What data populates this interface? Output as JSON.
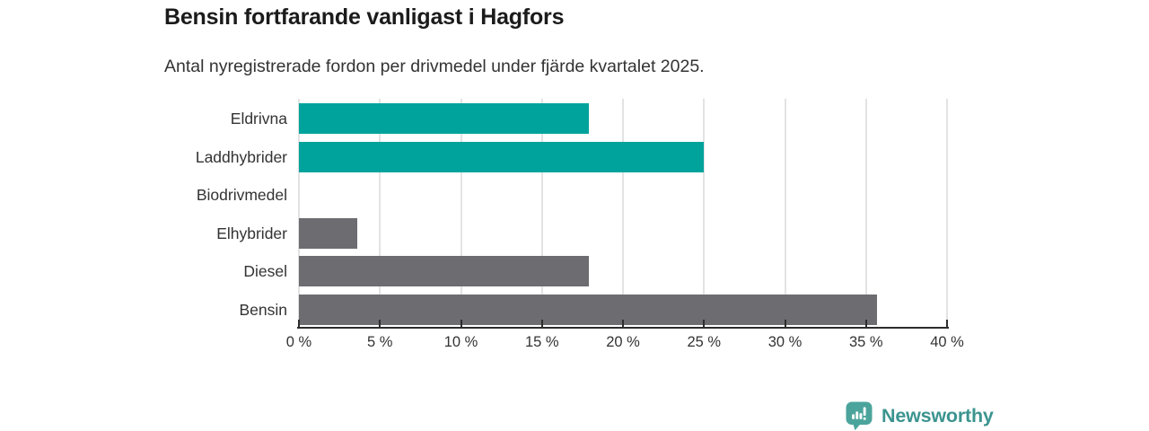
{
  "header": {
    "title": "Bensin fortfarande vanligast i Hagfors",
    "subtitle": "Antal nyregistrerade fordon per drivmedel under fjärde kvartalet 2025."
  },
  "chart_data": {
    "type": "bar",
    "orientation": "horizontal",
    "title": "Bensin fortfarande vanligast i Hagfors",
    "subtitle": "Antal nyregistrerade fordon per drivmedel under fjärde kvartalet 2025.",
    "categories": [
      "Eldrivna",
      "Laddhybrider",
      "Biodrivmedel",
      "Elhybrider",
      "Diesel",
      "Bensin"
    ],
    "values": [
      17.9,
      25.0,
      0,
      3.6,
      17.9,
      35.7
    ],
    "unit": "%",
    "bar_colors": [
      "#00a39c",
      "#00a39c",
      "#6c6c71",
      "#6c6c71",
      "#6c6c71",
      "#6c6c71"
    ],
    "xlim": [
      0,
      40
    ],
    "x_ticks": [
      0,
      5,
      10,
      15,
      20,
      25,
      30,
      35,
      40
    ],
    "x_tick_labels": [
      "0 %",
      "5 %",
      "10 %",
      "15 %",
      "20 %",
      "25 %",
      "30 %",
      "35 %",
      "40 %"
    ],
    "grid": true,
    "legend": false
  },
  "branding": {
    "logo_text": "Newsworthy",
    "logo_icon": "newsworthy-chart-bubble-icon",
    "icon_color": "#4ba49c",
    "wordmark_color": "#3b948f"
  },
  "colors": {
    "teal_bar": "#00a39c",
    "gray_bar": "#6c6c71",
    "axis": "#2d2d2d",
    "gridline": "#e3e3e3",
    "text": "#333333",
    "title_text": "#1b1b1b",
    "background": "#ffffff"
  }
}
